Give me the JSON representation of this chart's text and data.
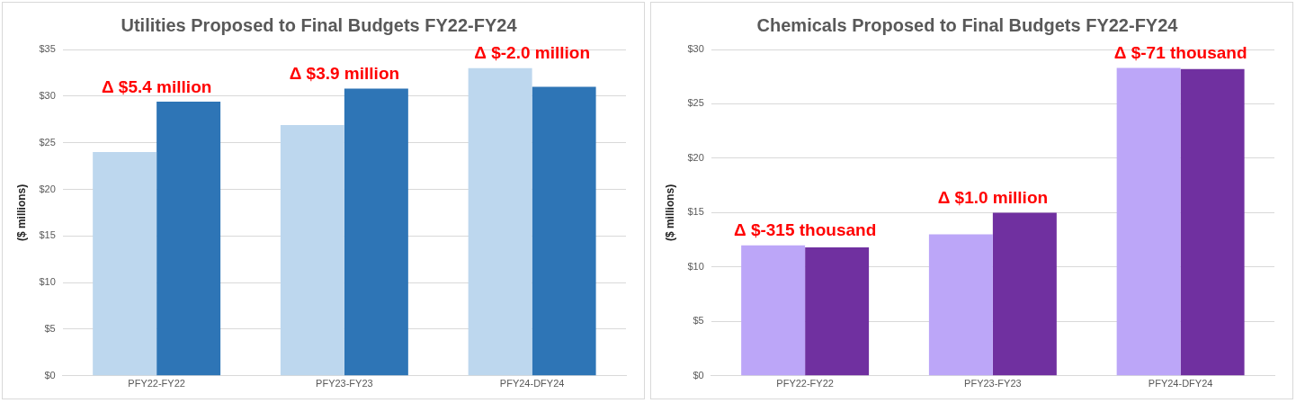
{
  "chart_data": [
    {
      "type": "bar",
      "title": "Utilities Proposed to Final Budgets FY22-FY24",
      "ylabel": "($ millions)",
      "categories": [
        "PFY22-FY22",
        "PFY23-FY23",
        "PFY24-DFY24"
      ],
      "series": [
        {
          "color": "#bdd7ee",
          "values": [
            24.0,
            26.9,
            33.0
          ]
        },
        {
          "color": "#2e75b6",
          "values": [
            29.4,
            30.8,
            31.0
          ]
        }
      ],
      "ylim": [
        0,
        35
      ],
      "yticks": [
        {
          "value": 0,
          "label": "$0"
        },
        {
          "value": 5,
          "label": "$5"
        },
        {
          "value": 10,
          "label": "$10"
        },
        {
          "value": 15,
          "label": "$15"
        },
        {
          "value": 20,
          "label": "$20"
        },
        {
          "value": 25,
          "label": "$25"
        },
        {
          "value": 30,
          "label": "$30"
        },
        {
          "value": 35,
          "label": "$35"
        }
      ],
      "grid": "y",
      "legend": false,
      "annotations": [
        "Δ $5.4 million",
        "Δ $3.9 million",
        "Δ $-2.0 million"
      ]
    },
    {
      "type": "bar",
      "title": "Chemicals Proposed to Final Budgets FY22-FY24",
      "ylabel": "($ millions)",
      "categories": [
        "PFY22-FY22",
        "PFY23-FY23",
        "PFY24-DFY24"
      ],
      "series": [
        {
          "color": "#bca6f8",
          "values": [
            12.0,
            13.0,
            28.3
          ]
        },
        {
          "color": "#7030a0",
          "values": [
            11.8,
            15.0,
            28.2
          ]
        }
      ],
      "ylim": [
        0,
        30
      ],
      "yticks": [
        {
          "value": 0,
          "label": "$0"
        },
        {
          "value": 5,
          "label": "$5"
        },
        {
          "value": 10,
          "label": "$10"
        },
        {
          "value": 15,
          "label": "$15"
        },
        {
          "value": 20,
          "label": "$20"
        },
        {
          "value": 25,
          "label": "$25"
        },
        {
          "value": 30,
          "label": "$30"
        }
      ],
      "grid": "y",
      "legend": false,
      "annotations": [
        "Δ $-315 thousand",
        "Δ $1.0 million",
        "Δ $-71 thousand"
      ]
    }
  ]
}
